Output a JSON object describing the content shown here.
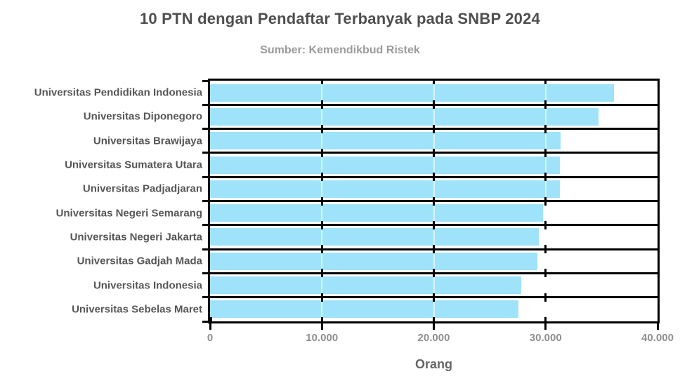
{
  "chart_data": {
    "type": "bar",
    "orientation": "horizontal",
    "title": "10 PTN dengan Pendaftar Terbanyak pada SNBP 2024",
    "subtitle": "Sumber: Kemendikbud Ristek",
    "xlabel": "Orang",
    "categories": [
      "Universitas Pendidikan Indonesia",
      "Universitas Diponegoro",
      "Universitas Brawijaya",
      "Universitas Sumatera Utara",
      "Universitas Padjadjaran",
      "Universitas Negeri Semarang",
      "Universitas Negeri Jakarta",
      "Universitas Gadjah Mada",
      "Universitas Indonesia",
      "Universitas Sebelas Maret"
    ],
    "values": [
      36100,
      34700,
      31350,
      31300,
      31300,
      29750,
      29400,
      29250,
      27800,
      27550
    ],
    "xlim": [
      0,
      40000
    ],
    "x_ticks": [
      {
        "value": 0,
        "label": "0"
      },
      {
        "value": 10000,
        "label": "10.000"
      },
      {
        "value": 20000,
        "label": "20.000"
      },
      {
        "value": 30000,
        "label": "30.000"
      },
      {
        "value": 40000,
        "label": "40.000"
      }
    ],
    "legend": "none",
    "grid": "vertical gridlines at x ticks; black separator lines between category rows; full black frame around plot"
  },
  "colors": {
    "bar": "#9EE3FA",
    "frame": "#000000",
    "title": "#4F4F4F",
    "subtitle": "#9B9B9B",
    "category_labels": "#565656",
    "tick_labels": "#8F8F8F",
    "axis_label": "#666666",
    "background": "#FFFFFF"
  }
}
